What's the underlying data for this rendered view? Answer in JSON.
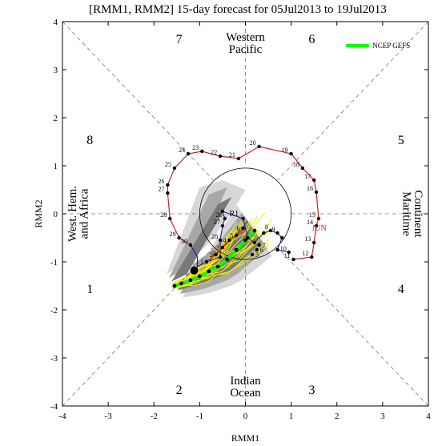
{
  "chart_data": {
    "type": "scatter",
    "title": "[RMM1, RMM2] 15-day forecast for 05Jul2013 to 19Jul2013",
    "xlabel": "RMM1",
    "ylabel": "RMM2",
    "xlim": [
      -4,
      4
    ],
    "ylim": [
      -4,
      4
    ],
    "xticks": [
      "-4",
      "-3",
      "-2",
      "-1",
      "0",
      "1",
      "2",
      "3",
      "4"
    ],
    "yticks": [
      "-4",
      "-3",
      "-2",
      "-1",
      "0",
      "1",
      "2",
      "3",
      "4"
    ],
    "grid": false,
    "legend_position": "top-right",
    "phase_numbers": [
      {
        "label": "1",
        "x": -3.4,
        "y": -1.55
      },
      {
        "label": "2",
        "x": -1.45,
        "y": -3.65
      },
      {
        "label": "3",
        "x": 1.45,
        "y": -3.65
      },
      {
        "label": "4",
        "x": 3.4,
        "y": -1.55
      },
      {
        "label": "5",
        "x": 3.4,
        "y": 1.55
      },
      {
        "label": "6",
        "x": 1.45,
        "y": 3.65
      },
      {
        "label": "7",
        "x": -1.45,
        "y": 3.65
      },
      {
        "label": "8",
        "x": -3.4,
        "y": 1.55
      }
    ],
    "regions": {
      "top_line1": "Western",
      "top_line2": "Pacific",
      "bottom_line1": "Indian",
      "bottom_line2": "Ocean",
      "left_line1": "West. Hem.",
      "left_line2": "and Africa",
      "right_line1": "Maritime",
      "right_line2": "Continent"
    },
    "legend": {
      "label": "NCEP GEFS",
      "color": "#00ff00"
    },
    "observed_label": "JUN",
    "forecast_start_label": "R1",
    "observed": [
      {
        "day": "11",
        "x": 1.05,
        "y": -0.95
      },
      {
        "day": "12",
        "x": 1.45,
        "y": -0.9
      },
      {
        "day": "13",
        "x": 1.5,
        "y": -0.6
      },
      {
        "day": "14",
        "x": 1.55,
        "y": -0.25
      },
      {
        "day": "15",
        "x": 1.6,
        "y": -0.1
      },
      {
        "day": "16",
        "x": 1.55,
        "y": 0.45
      },
      {
        "day": "17",
        "x": 1.5,
        "y": 0.7
      },
      {
        "day": "18",
        "x": 1.25,
        "y": 0.95
      },
      {
        "day": "19",
        "x": 1.0,
        "y": 1.25
      },
      {
        "day": "20",
        "x": 0.3,
        "y": 1.4
      },
      {
        "day": "21",
        "x": -0.15,
        "y": 1.15
      },
      {
        "day": "22",
        "x": -0.55,
        "y": 1.2
      },
      {
        "day": "23",
        "x": -0.95,
        "y": 1.3
      },
      {
        "day": "24",
        "x": -1.25,
        "y": 1.25
      },
      {
        "day": "25",
        "x": -1.55,
        "y": 0.95
      },
      {
        "day": "26",
        "x": -1.7,
        "y": 0.6
      },
      {
        "day": "27",
        "x": -1.7,
        "y": 0.43
      },
      {
        "day": "28",
        "x": -1.65,
        "y": -0.1
      },
      {
        "day": "29",
        "x": -1.45,
        "y": -0.5
      },
      {
        "day": "30",
        "x": -1.2,
        "y": -0.65
      }
    ],
    "obs_to_red": [
      {
        "x": -1.2,
        "y": -0.65
      },
      {
        "x": -1.05,
        "y": -0.9
      },
      {
        "x": -1.05,
        "y": -1.1
      },
      {
        "x": -0.85,
        "y": -1.0
      }
    ],
    "inner_path": [
      {
        "day": "",
        "x": -0.85,
        "y": -1.0
      },
      {
        "day": "29",
        "x": -0.55,
        "y": -0.9
      },
      {
        "day": "28",
        "x": -0.55,
        "y": -0.55
      },
      {
        "day": "27",
        "x": -0.5,
        "y": -0.25
      },
      {
        "day": "26",
        "x": -0.45,
        "y": -0.1
      },
      {
        "day": "",
        "x": -0.5,
        "y": 0.05
      },
      {
        "day": "",
        "x": -0.05,
        "y": -0.1
      },
      {
        "day": "",
        "x": 0.05,
        "y": -0.5
      },
      {
        "day": "",
        "x": 0.2,
        "y": -0.6
      },
      {
        "day": "",
        "x": 0.4,
        "y": -0.4
      },
      {
        "day": "8",
        "x": 0.55,
        "y": -0.35
      },
      {
        "day": "9",
        "x": 0.7,
        "y": -0.4
      },
      {
        "day": "",
        "x": 0.8,
        "y": -0.5
      },
      {
        "day": "",
        "x": 0.7,
        "y": -0.75
      },
      {
        "day": "10",
        "x": 0.95,
        "y": -0.8
      }
    ],
    "red_track": [
      {
        "day": "1",
        "x": -0.85,
        "y": -1.0
      },
      {
        "day": "2",
        "x": -0.65,
        "y": -0.85
      },
      {
        "day": "3",
        "x": -0.5,
        "y": -0.7
      },
      {
        "day": "4",
        "x": -0.35,
        "y": -0.55
      },
      {
        "day": "5",
        "x": -0.2,
        "y": -0.45
      },
      {
        "day": "6",
        "x": -0.05,
        "y": -0.3
      }
    ],
    "late_points": [
      {
        "day": "5",
        "x": 0.15,
        "y": -0.85
      },
      {
        "day": "6",
        "x": 0.25,
        "y": -0.75
      },
      {
        "day": "7",
        "x": 0.3,
        "y": -0.65
      }
    ],
    "gefs_mean": [
      {
        "x": 0.2,
        "y": -0.35
      },
      {
        "x": 0.0,
        "y": -0.55
      },
      {
        "x": -0.2,
        "y": -0.75
      },
      {
        "x": -0.4,
        "y": -0.95
      },
      {
        "x": -0.6,
        "y": -1.1
      },
      {
        "x": -0.8,
        "y": -1.2
      },
      {
        "x": -1.0,
        "y": -1.3
      },
      {
        "x": -1.2,
        "y": -1.38
      },
      {
        "x": -1.4,
        "y": -1.45
      },
      {
        "x": -1.55,
        "y": -1.5
      }
    ]
  }
}
